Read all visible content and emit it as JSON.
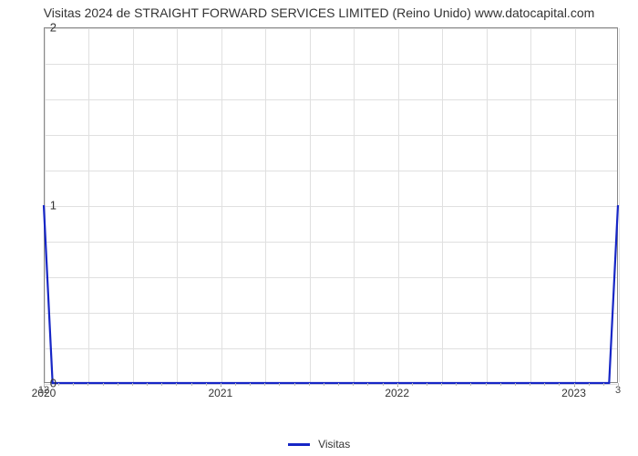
{
  "chart": {
    "type": "line",
    "title": "Visitas 2024 de STRAIGHT FORWARD SERVICES LIMITED (Reino Unido) www.datocapital.com",
    "title_fontsize": 14,
    "title_color": "#333333",
    "background_color": "#ffffff",
    "plot_border_color": "#888888",
    "grid_color": "#e0e0e0",
    "line_color": "#1626c6",
    "line_width": 2.2,
    "x": {
      "domain_min": 2020.0,
      "domain_max": 2023.25,
      "major_ticks": [
        2020,
        2021,
        2022,
        2023
      ],
      "minor_tick_step": 0.0833333,
      "label_fontsize": 12,
      "label_color": "#333333"
    },
    "y": {
      "lim": [
        0,
        2
      ],
      "major_ticks": [
        0,
        1,
        2
      ],
      "minor_tick_step": 0.2,
      "label_fontsize": 13,
      "label_color": "#333333"
    },
    "series": {
      "name": "Visitas",
      "points": [
        {
          "x": 2020.0,
          "y": 1.0,
          "label": "12"
        },
        {
          "x": 2020.05,
          "y": 0.0,
          "label": null
        },
        {
          "x": 2023.2,
          "y": 0.0,
          "label": null
        },
        {
          "x": 2023.25,
          "y": 1.0,
          "label": "3"
        }
      ]
    },
    "legend": {
      "label": "Visitas",
      "swatch_color": "#1626c6",
      "text_color": "#333333",
      "fontsize": 12
    }
  }
}
